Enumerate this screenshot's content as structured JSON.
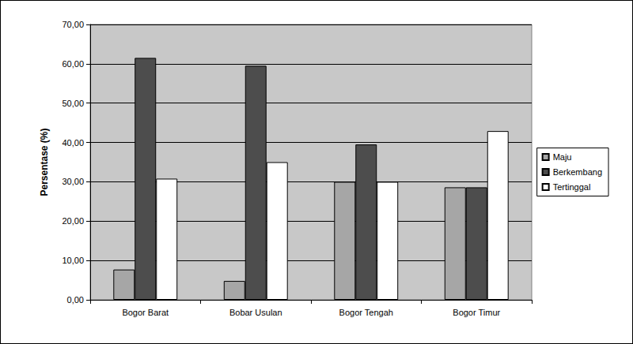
{
  "chart_data": {
    "type": "bar",
    "y_label": "Persentase (%)",
    "categories": [
      "Bogor Barat",
      "Bobar Usulan",
      "Bogor Tengah",
      "Bogor Timur"
    ],
    "series": [
      {
        "name": "Maju",
        "color": "#a6a6a6",
        "values": [
          7.7,
          4.8,
          30.0,
          28.6
        ]
      },
      {
        "name": "Berkembang",
        "color": "#4d4d4d",
        "values": [
          61.5,
          59.5,
          39.5,
          28.6
        ]
      },
      {
        "name": "Tertinggal",
        "color": "#ffffff",
        "values": [
          30.8,
          35.0,
          30.0,
          42.9
        ]
      }
    ],
    "ylim": [
      0,
      70
    ],
    "yticks": [
      {
        "value": 0,
        "label": "0,00"
      },
      {
        "value": 10,
        "label": "10,00"
      },
      {
        "value": 20,
        "label": "20,00"
      },
      {
        "value": 30,
        "label": "30,00"
      },
      {
        "value": 40,
        "label": "40,00"
      },
      {
        "value": 50,
        "label": "50,00"
      },
      {
        "value": 60,
        "label": "60,00"
      },
      {
        "value": 70,
        "label": "70,00"
      }
    ],
    "grid": true,
    "legend": "right"
  }
}
